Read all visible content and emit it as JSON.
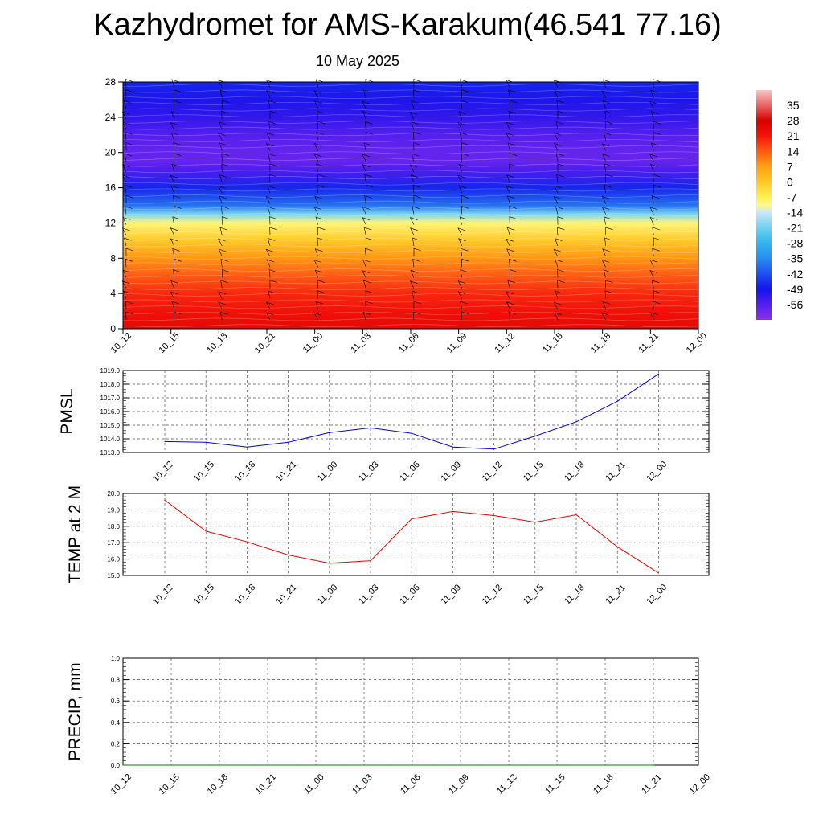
{
  "header": {
    "title": "Kazhydromet for AMS-Karakum(46.541 77.16)",
    "subtitle": "10 May 2025"
  },
  "chart_data": [
    {
      "type": "heatmap",
      "title": "",
      "xlabel": "",
      "ylabel": "",
      "categories": [
        "10_12",
        "10_15",
        "10_18",
        "10_21",
        "11_00",
        "11_03",
        "11_06",
        "11_09",
        "11_12",
        "11_15",
        "11_18",
        "11_21",
        "12_00"
      ],
      "y_ticks": [
        0,
        4,
        8,
        12,
        16,
        20,
        24,
        28
      ],
      "ylim": [
        0,
        28
      ],
      "y_levels": [
        0,
        2,
        4,
        6,
        8,
        10,
        12,
        13,
        14,
        16,
        18,
        19,
        20,
        22,
        24,
        26,
        28
      ],
      "z_mean_by_level": [
        25,
        22,
        19,
        14,
        8,
        0,
        -9,
        -20,
        -38,
        -47,
        -55,
        -58,
        -58,
        -56,
        -52,
        -50,
        -47
      ],
      "colorbar_ticks": [
        "35",
        "28",
        "21",
        "14",
        "7",
        "0",
        "-7",
        "-14",
        "-21",
        "-28",
        "-35",
        "-42",
        "-49",
        "-56"
      ],
      "colorbar_range": [
        -63,
        42
      ],
      "wind_barbs": true
    },
    {
      "type": "line",
      "ylabel": "PMSL",
      "categories": [
        "10_12",
        "10_15",
        "10_18",
        "10_21",
        "11_00",
        "11_03",
        "11_06",
        "11_09",
        "11_12",
        "11_15",
        "11_18",
        "11_21",
        "12_00"
      ],
      "ylim": [
        1013.0,
        1019.0
      ],
      "y_ticks": [
        "1013.0",
        "1014.0",
        "1015.0",
        "1016.0",
        "1017.0",
        "1018.0",
        "1019.0"
      ],
      "series": [
        {
          "values": [
            1013.8,
            1013.75,
            1013.4,
            1013.75,
            1014.45,
            1014.8,
            1014.4,
            1013.4,
            1013.25,
            1014.2,
            1015.25,
            1016.75,
            1018.75
          ],
          "color": "#0000ee"
        }
      ],
      "grid": true
    },
    {
      "type": "line",
      "ylabel": "TEMP at 2 M",
      "categories": [
        "10_12",
        "10_15",
        "10_18",
        "10_21",
        "11_00",
        "11_03",
        "11_06",
        "11_09",
        "11_12",
        "11_15",
        "11_18",
        "11_21",
        "12_00"
      ],
      "ylim": [
        15.0,
        20.0
      ],
      "y_ticks": [
        "15.0",
        "16.0",
        "17.0",
        "18.0",
        "19.0",
        "20.0"
      ],
      "series": [
        {
          "values": [
            19.6,
            17.7,
            17.05,
            16.25,
            15.75,
            15.9,
            18.45,
            18.9,
            18.65,
            18.25,
            18.7,
            16.75,
            15.15
          ],
          "color": "#ee0000"
        }
      ],
      "grid": true
    },
    {
      "type": "line",
      "ylabel": "PRECIP, mm",
      "categories": [
        "10_12",
        "10_15",
        "10_18",
        "10_21",
        "11_00",
        "11_03",
        "11_06",
        "11_09",
        "11_12",
        "11_15",
        "11_18",
        "11_21",
        "12_00"
      ],
      "ylim": [
        0.0,
        1.0
      ],
      "y_ticks": [
        "0.0",
        "0.2",
        "0.4",
        "0.6",
        "0.8",
        "1.0"
      ],
      "series": [
        {
          "values": [
            0,
            0,
            0,
            0,
            0,
            0,
            0,
            0,
            0,
            0,
            0,
            0,
            0
          ],
          "color": "#008000"
        }
      ],
      "grid": true
    }
  ],
  "colors": {
    "pmsl_line": "#0000ee",
    "temp_line": "#ee0000",
    "precip_line": "#008000",
    "grid": "#555555"
  }
}
